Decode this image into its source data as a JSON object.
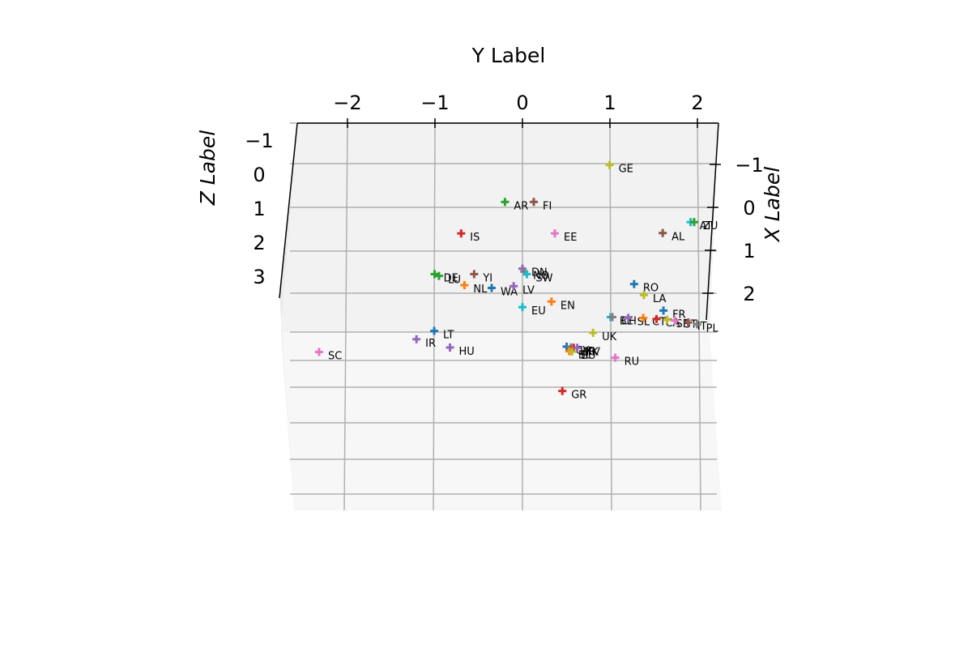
{
  "chart_data": {
    "type": "scatter",
    "projection": "3d",
    "marker": "plus",
    "xlabel": "X Label",
    "ylabel": "Y Label",
    "zlabel": "Z Label",
    "xticks": [
      "−1",
      "0",
      "1",
      "2"
    ],
    "yticks": [
      "−2",
      "−1",
      "0",
      "1",
      "2"
    ],
    "zticks": [
      "−1",
      "0",
      "1",
      "2",
      "3"
    ],
    "grid": true,
    "palette": [
      "#1f77b4",
      "#ff7f0e",
      "#2ca02c",
      "#d62728",
      "#9467bd",
      "#8c564b",
      "#e377c2",
      "#7f7f7f",
      "#bcbd22",
      "#17becf"
    ],
    "points": [
      {
        "label": "GE",
        "x": -1.1,
        "y": 1.0,
        "z": 0.0,
        "color": "#bcbd22"
      },
      {
        "label": "AR",
        "x": -0.3,
        "y": -0.2,
        "z": 0.8,
        "color": "#2ca02c"
      },
      {
        "label": "FI",
        "x": -0.3,
        "y": 0.13,
        "z": 0.8,
        "color": "#8c564b"
      },
      {
        "label": "IS",
        "x": 0.35,
        "y": -0.7,
        "z": 1.6,
        "color": "#d62728"
      },
      {
        "label": "EE",
        "x": 0.35,
        "y": 0.37,
        "z": 1.6,
        "color": "#e377c2"
      },
      {
        "label": "AT",
        "x": 0.36,
        "y": 1.92,
        "z": 0.4,
        "color": "#17becf"
      },
      {
        "label": "ZU",
        "x": 0.36,
        "y": 1.96,
        "z": 0.4,
        "color": "#2ca02c"
      },
      {
        "label": "AL",
        "x": 0.58,
        "y": 1.6,
        "z": 0.7,
        "color": "#8c564b"
      },
      {
        "label": "DE",
        "x": 1.2,
        "y": -1.0,
        "z": 2.6,
        "color": "#2ca02c"
      },
      {
        "label": "LU",
        "x": 1.25,
        "y": -0.95,
        "z": 2.6,
        "color": "#2ca02c"
      },
      {
        "label": "YI",
        "x": 1.2,
        "y": -0.55,
        "z": 2.6,
        "color": "#8c564b"
      },
      {
        "label": "DN",
        "x": 1.05,
        "y": 0.0,
        "z": 2.6,
        "color": "#9467bd"
      },
      {
        "label": "NO",
        "x": 1.13,
        "y": 0.02,
        "z": 2.6,
        "color": "#7f7f7f"
      },
      {
        "label": "SW",
        "x": 1.2,
        "y": 0.05,
        "z": 2.6,
        "color": "#17becf"
      },
      {
        "label": "NL",
        "x": 1.45,
        "y": -0.66,
        "z": 2.8,
        "color": "#ff7f0e"
      },
      {
        "label": "WA",
        "x": 1.5,
        "y": -0.35,
        "z": 2.9,
        "color": "#1f77b4"
      },
      {
        "label": "LV",
        "x": 1.45,
        "y": -0.1,
        "z": 2.9,
        "color": "#9467bd"
      },
      {
        "label": "RO",
        "x": 1.5,
        "y": 1.27,
        "z": 2.5,
        "color": "#1f77b4"
      },
      {
        "label": "LA",
        "x": 1.8,
        "y": 1.38,
        "z": 2.5,
        "color": "#bcbd22"
      },
      {
        "label": "EN",
        "x": 1.9,
        "y": 0.33,
        "z": 2.8,
        "color": "#ff7f0e"
      },
      {
        "label": "EU",
        "x": 2.0,
        "y": 0.0,
        "z": 3.0,
        "color": "#17becf"
      },
      {
        "label": "FR",
        "x": 2.2,
        "y": 1.6,
        "z": 2.6,
        "color": "#1f77b4"
      },
      {
        "label": "BE",
        "x": 2.3,
        "y": 1.0,
        "z": 2.9,
        "color": "#17becf"
      },
      {
        "label": "CH",
        "x": 2.3,
        "y": 1.02,
        "z": 2.9,
        "color": "#7f7f7f"
      },
      {
        "label": "SL",
        "x": 2.32,
        "y": 1.2,
        "z": 2.9,
        "color": "#9467bd"
      },
      {
        "label": "CT",
        "x": 2.35,
        "y": 1.37,
        "z": 2.8,
        "color": "#ff7f0e"
      },
      {
        "label": "CA",
        "x": 2.38,
        "y": 1.52,
        "z": 2.8,
        "color": "#d62728"
      },
      {
        "label": "SP",
        "x": 2.4,
        "y": 1.64,
        "z": 2.8,
        "color": "#bcbd22"
      },
      {
        "label": "ST",
        "x": 2.42,
        "y": 1.73,
        "z": 2.8,
        "color": "#e377c2"
      },
      {
        "label": "IT",
        "x": 2.5,
        "y": 1.88,
        "z": 2.7,
        "color": "#8c564b"
      },
      {
        "label": "PL",
        "x": 2.55,
        "y": 1.98,
        "z": 2.7,
        "color": "#7f7f7f"
      },
      {
        "label": "UK",
        "x": 2.65,
        "y": 0.8,
        "z": 3.2,
        "color": "#bcbd22"
      },
      {
        "label": "LT",
        "x": 2.6,
        "y": -1.0,
        "z": 3.2,
        "color": "#1f77b4"
      },
      {
        "label": "IR",
        "x": 2.8,
        "y": -1.2,
        "z": 3.3,
        "color": "#9467bd"
      },
      {
        "label": "HU",
        "x": 3.0,
        "y": -0.82,
        "z": 3.4,
        "color": "#9467bd"
      },
      {
        "label": "SC",
        "x": 3.15,
        "y": -2.3,
        "z": 3.3,
        "color": "#e377c2"
      },
      {
        "label": "CY",
        "x": 2.95,
        "y": 0.5,
        "z": 3.5,
        "color": "#1f77b4"
      },
      {
        "label": "HR",
        "x": 2.97,
        "y": 0.55,
        "z": 3.5,
        "color": "#7f7f7f"
      },
      {
        "label": "MK",
        "x": 2.98,
        "y": 0.58,
        "z": 3.5,
        "color": "#d62728"
      },
      {
        "label": "KV",
        "x": 2.98,
        "y": 0.62,
        "z": 3.5,
        "color": "#9467bd"
      },
      {
        "label": "BL",
        "x": 3.05,
        "y": 0.53,
        "z": 3.6,
        "color": "#ff7f0e"
      },
      {
        "label": "BU",
        "x": 3.06,
        "y": 0.56,
        "z": 3.6,
        "color": "#bcbd22"
      },
      {
        "label": "RU",
        "x": 3.2,
        "y": 1.05,
        "z": 3.7,
        "color": "#e377c2"
      },
      {
        "label": "GR",
        "x": 3.9,
        "y": 0.45,
        "z": 4.5,
        "color": "#d62728"
      }
    ]
  }
}
